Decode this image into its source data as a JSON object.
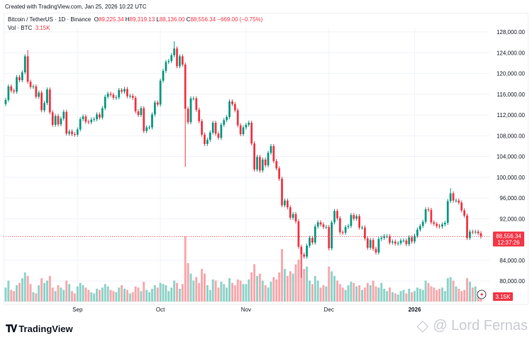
{
  "header": {
    "created": "Created with TradingView.com, Jan 25, 2026 10:22 UTC"
  },
  "legend": {
    "symbol": "Bitcoin / TetherUS · 1D · Binance",
    "o_label": "O",
    "o": "89,225.34",
    "h_label": "H",
    "h": "89,319.13",
    "l_label": "L",
    "l": "88,136.00",
    "c_label": "C",
    "c": "88,556.34",
    "change": "−669.00 (−0.75%)",
    "vol_label": "Vol · BTC",
    "vol": "3.15K"
  },
  "price_label": {
    "price": "88,556.34",
    "countdown": "12:37:26"
  },
  "vol_label": "3.15K",
  "footer": {
    "logo": "TradingView",
    "watermark": "@ Lord Fernas"
  },
  "colors": {
    "up": "#089981",
    "down": "#f23645",
    "up_vol": "#8fd3c9",
    "down_vol": "#f7a9ae"
  },
  "chart_data": {
    "type": "candlestick",
    "interval": "1D",
    "start_date": "2025-08-06",
    "end_date": "2026-01-25",
    "ylim": [
      78000,
      130000
    ],
    "y_ticks": [
      80000,
      84000,
      88000,
      92000,
      96000,
      100000,
      104000,
      108000,
      112000,
      116000,
      120000,
      124000,
      128000
    ],
    "y_tick_labels": [
      "80,000.00",
      "84,000.00",
      "",
      "92,000.00",
      "96,000.00",
      "100,000.00",
      "104,000.00",
      "108,000.00",
      "112,000.00",
      "116,000.00",
      "120,000.00",
      "124,000.00",
      "128,000.00"
    ],
    "x_tick_labels": [
      {
        "label": "Sep",
        "date": "2025-09-01"
      },
      {
        "label": "Oct",
        "date": "2025-10-01"
      },
      {
        "label": "Nov",
        "date": "2025-11-01"
      },
      {
        "label": "Dec",
        "date": "2025-12-01"
      },
      {
        "label": "2026",
        "date": "2026-01-01"
      }
    ],
    "open_first": 114100,
    "close": [
      114.9,
      117.5,
      116.7,
      116.5,
      119.3,
      118.7,
      120.2,
      123.3,
      118.4,
      117.4,
      117.5,
      115.5,
      116.3,
      112.9,
      114.3,
      116.9,
      112.5,
      110.1,
      111.8,
      110.2,
      111.3,
      112.6,
      108.4,
      108.8,
      108.3,
      108.2,
      109.2,
      111.2,
      111.7,
      110.7,
      110.6,
      111.1,
      111.2,
      112.1,
      111.5,
      113.3,
      115.5,
      116.1,
      115.9,
      115.3,
      115.4,
      116.8,
      116.5,
      117.0,
      115.6,
      115.7,
      115.3,
      112.7,
      112.0,
      113.3,
      108.9,
      109.6,
      109.6,
      112.1,
      114.4,
      114.0,
      118.6,
      120.5,
      122.2,
      122.4,
      123.5,
      124.8,
      121.4,
      123.3,
      121.7,
      113.2,
      110.6,
      115.2,
      115.2,
      113.0,
      110.8,
      108.2,
      106.4,
      107.2,
      108.6,
      110.5,
      108.4,
      107.6,
      110.1,
      111.0,
      111.6,
      114.6,
      114.1,
      112.9,
      110.0,
      108.3,
      109.6,
      110.1,
      110.5,
      106.5,
      101.5,
      103.9,
      101.3,
      103.4,
      102.3,
      104.7,
      106.0,
      103.1,
      101.7,
      99.7,
      94.6,
      95.5,
      94.2,
      92.2,
      92.9,
      91.5,
      86.6,
      85.1,
      84.7,
      86.8,
      88.3,
      87.4,
      90.5,
      91.3,
      90.9,
      90.4,
      90.4,
      86.3,
      91.3,
      93.5,
      92.1,
      89.4,
      89.3,
      90.4,
      90.6,
      92.7,
      92.0,
      92.5,
      90.3,
      90.3,
      88.2,
      86.4,
      87.9,
      86.2,
      85.5,
      88.1,
      88.3,
      88.6,
      88.6,
      87.4,
      87.6,
      87.2,
      87.3,
      87.8,
      87.8,
      87.1,
      88.4,
      87.6,
      88.7,
      89.9,
      90.6,
      91.4,
      93.8,
      93.7,
      91.3,
      91.0,
      90.6,
      90.5,
      90.9,
      91.2,
      95.4,
      96.9,
      95.5,
      95.5,
      95.1,
      93.6,
      92.6,
      88.3,
      89.5,
      89.4,
      89.5,
      89.2,
      88.556
    ],
    "close_unit": "thousand USDT",
    "notable_wicks": [
      {
        "date": "2025-08-14",
        "high": 124.5
      },
      {
        "date": "2025-10-06",
        "high": 126.2
      },
      {
        "date": "2025-10-10",
        "low": 102.0
      },
      {
        "date": "2025-11-21",
        "low": 80.6
      },
      {
        "date": "2026-01-14",
        "high": 97.9
      }
    ],
    "volume_unit": "K BTC",
    "volume": [
      12,
      18,
      10,
      9,
      14,
      16,
      20,
      25,
      22,
      15,
      8,
      7,
      14,
      20,
      16,
      18,
      22,
      12,
      9,
      14,
      12,
      10,
      18,
      15,
      9,
      7,
      13,
      16,
      14,
      12,
      10,
      8,
      7,
      11,
      10,
      12,
      15,
      13,
      10,
      9,
      8,
      12,
      14,
      11,
      10,
      7,
      8,
      13,
      12,
      9,
      17,
      10,
      8,
      11,
      14,
      12,
      16,
      15,
      14,
      9,
      12,
      18,
      16,
      11,
      15,
      56,
      33,
      24,
      18,
      21,
      16,
      28,
      24,
      14,
      10,
      19,
      18,
      12,
      17,
      15,
      12,
      20,
      16,
      14,
      19,
      18,
      15,
      15,
      19,
      25,
      32,
      22,
      24,
      18,
      14,
      12,
      17,
      21,
      19,
      25,
      45,
      28,
      22,
      26,
      24,
      32,
      36,
      40,
      28,
      30,
      18,
      15,
      22,
      18,
      12,
      14,
      13,
      30,
      26,
      22,
      18,
      15,
      12,
      10,
      14,
      17,
      16,
      13,
      14,
      10,
      12,
      16,
      14,
      18,
      13,
      12,
      16,
      11,
      9,
      12,
      8,
      7,
      6,
      9,
      10,
      7,
      11,
      8,
      9,
      12,
      11,
      10,
      18,
      16,
      13,
      12,
      10,
      11,
      12,
      9,
      20,
      21,
      18,
      13,
      11,
      9,
      10,
      20,
      17,
      12,
      13,
      9,
      3.15
    ]
  }
}
